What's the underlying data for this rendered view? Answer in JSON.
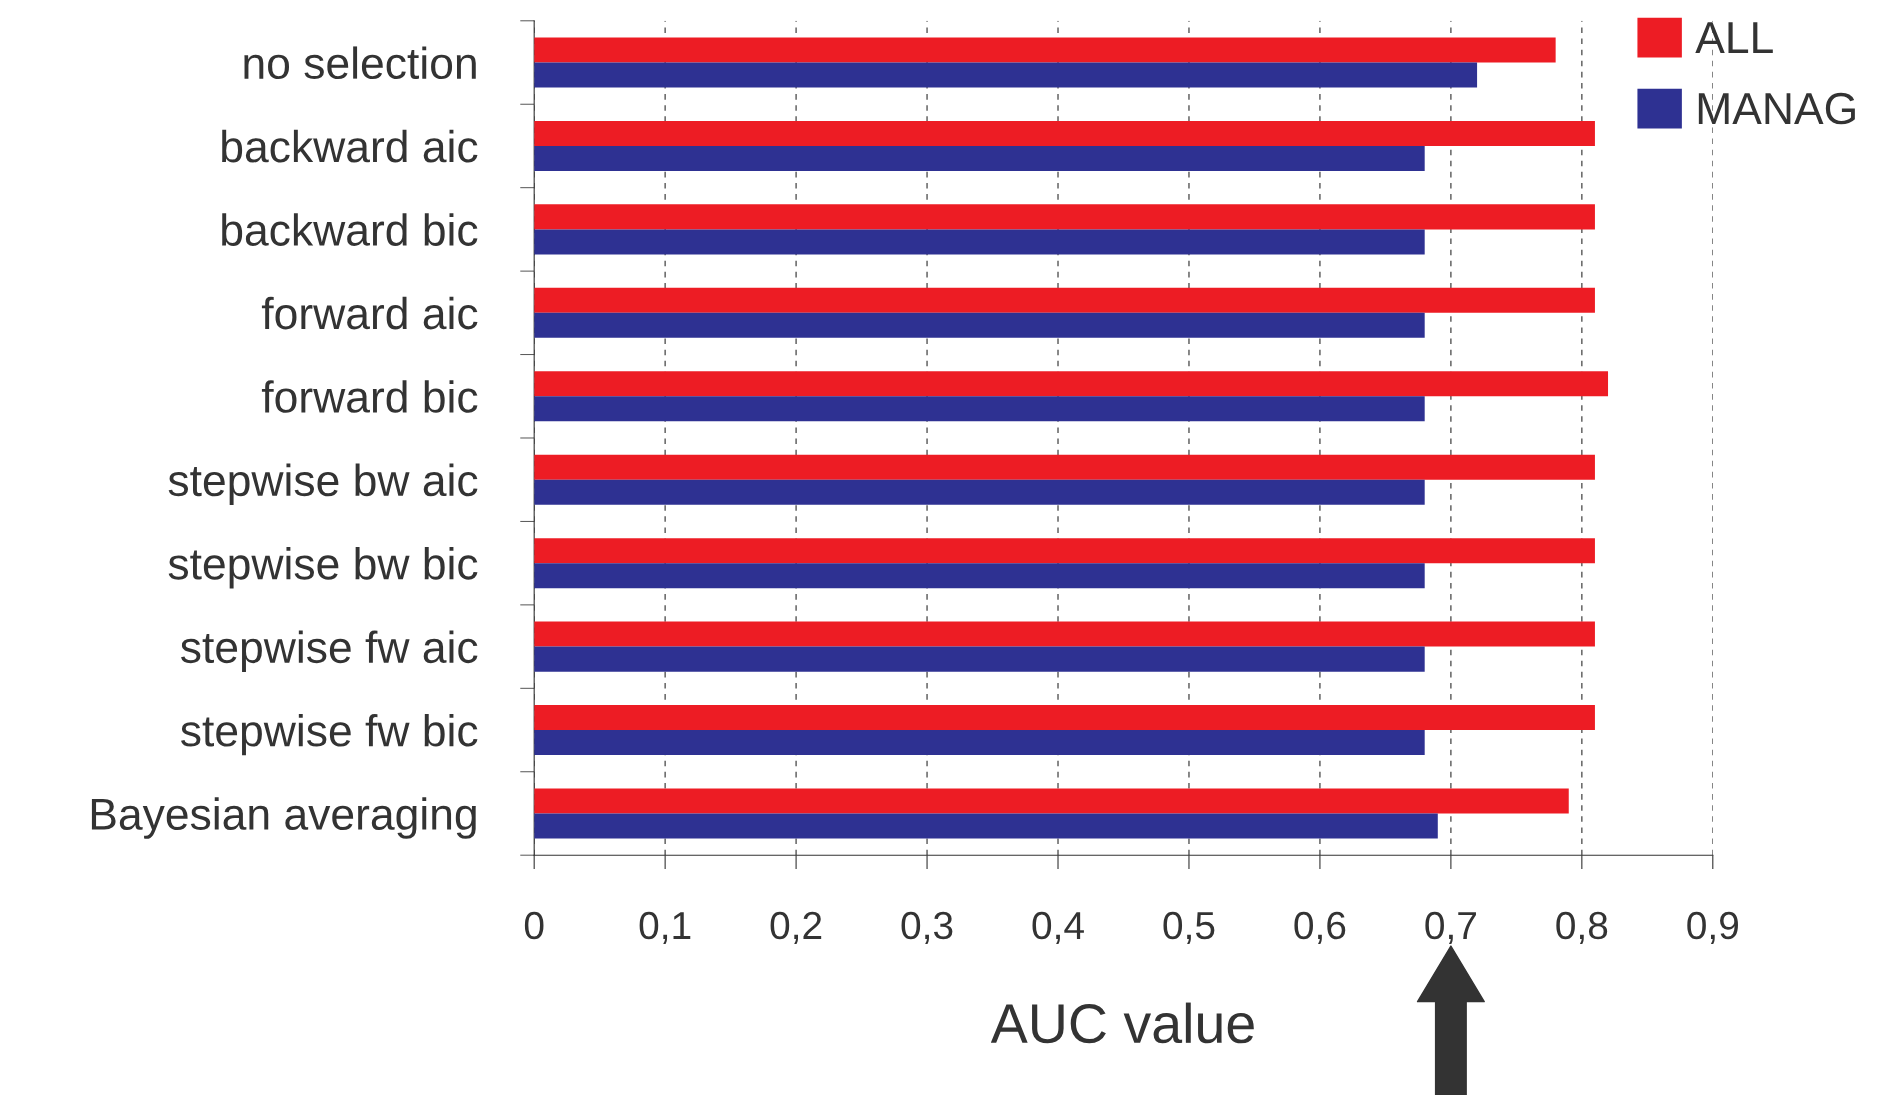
{
  "chart_data": {
    "type": "bar",
    "orientation": "horizontal",
    "xlabel": "AUC value",
    "categories": [
      "no selection",
      "backward aic",
      "backward bic",
      "forward aic",
      "forward bic",
      "stepwise bw aic",
      "stepwise bw bic",
      "stepwise fw aic",
      "stepwise fw bic",
      "Bayesian averaging"
    ],
    "series": [
      {
        "name": "ALL",
        "color": "#ed1c24",
        "values": [
          0.78,
          0.81,
          0.81,
          0.81,
          0.82,
          0.81,
          0.81,
          0.81,
          0.81,
          0.79
        ]
      },
      {
        "name": "MANAG",
        "color": "#2e3192",
        "values": [
          0.72,
          0.68,
          0.68,
          0.68,
          0.68,
          0.68,
          0.68,
          0.68,
          0.68,
          0.69
        ]
      }
    ],
    "xlim": [
      0,
      0.9
    ],
    "xticks": [
      0,
      {
        "value": 0.1,
        "label": "0,1"
      },
      {
        "value": 0.2,
        "label": "0,2"
      },
      {
        "value": 0.3,
        "label": "0,3"
      },
      {
        "value": 0.4,
        "label": "0,4"
      },
      {
        "value": 0.5,
        "label": "0,5"
      },
      {
        "value": 0.6,
        "label": "0,6"
      },
      {
        "value": 0.7,
        "label": "0,7"
      },
      {
        "value": 0.8,
        "label": "0,8"
      },
      {
        "value": 0.9,
        "label": "0,9"
      }
    ],
    "grid": "x",
    "legend": "top right"
  }
}
